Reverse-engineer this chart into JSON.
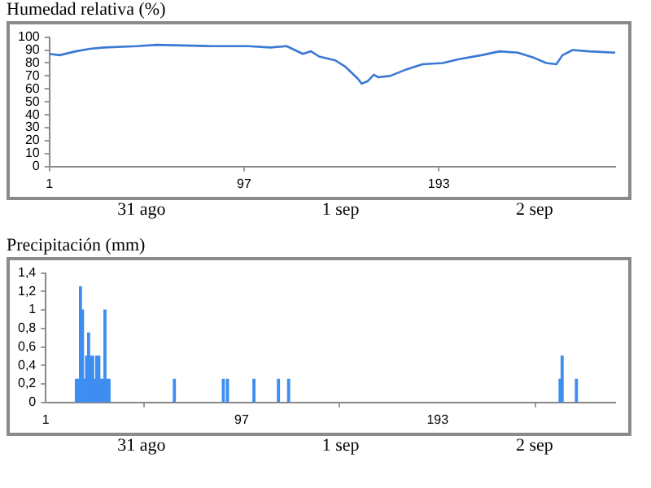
{
  "chart_data": [
    {
      "type": "line",
      "title": "Humedad relativa (%)",
      "marker": "none",
      "color": "#3a78d4",
      "x": [
        1,
        6,
        14,
        21,
        28,
        44,
        54,
        81,
        99,
        110,
        118,
        122,
        126,
        130,
        134,
        142,
        147,
        153,
        155,
        158,
        161,
        163,
        169,
        177,
        185,
        195,
        203,
        214,
        223,
        232,
        240,
        246,
        251,
        254,
        259,
        267,
        280
      ],
      "values": [
        87,
        86,
        89,
        91,
        92,
        93,
        94,
        93,
        93,
        92,
        93,
        90,
        87,
        89,
        85,
        82,
        77,
        68,
        64,
        66,
        71,
        69,
        70,
        75,
        79,
        80,
        83,
        86,
        89,
        88,
        84,
        80,
        79,
        86,
        90,
        89,
        88
      ],
      "xlim": [
        1,
        280
      ],
      "xticks": [
        1,
        97,
        193
      ],
      "ylim": [
        0,
        100
      ],
      "yticks": [
        0,
        10,
        20,
        30,
        40,
        50,
        60,
        70,
        80,
        90,
        100
      ],
      "annotations": [
        "31 ago",
        "1 sep",
        "2 sep"
      ]
    },
    {
      "type": "bar",
      "title": "Precipitación (mm)",
      "color": "#3d8ef0",
      "x": [
        16,
        17,
        18,
        19,
        20,
        21,
        22,
        23,
        24,
        25,
        26,
        27,
        28,
        29,
        30,
        31,
        32,
        64,
        88,
        90,
        103,
        115,
        120,
        253,
        254,
        261
      ],
      "values": [
        0.25,
        0.25,
        1.25,
        1,
        0.25,
        0.5,
        0.75,
        0.5,
        0.5,
        0.25,
        0.5,
        0.5,
        0.25,
        0.25,
        1,
        0.25,
        0.25,
        0.25,
        0.25,
        0.25,
        0.25,
        0.25,
        0.25,
        0.25,
        0.5,
        0.25
      ],
      "xlim": [
        1,
        280
      ],
      "xticks": [
        1,
        97,
        193
      ],
      "ylim": [
        0,
        1.4
      ],
      "yticks": [
        0,
        {
          "value": 0.2,
          "label": "0,2"
        },
        {
          "value": 0.4,
          "label": "0,4"
        },
        {
          "value": 0.6,
          "label": "0,6"
        },
        {
          "value": 0.8,
          "label": "0,8"
        },
        1,
        {
          "value": 1.2,
          "label": "1,2"
        },
        {
          "value": 1.4,
          "label": "1,4"
        }
      ],
      "annotations": [
        "31 ago",
        "1 sep",
        "2 sep"
      ]
    }
  ]
}
